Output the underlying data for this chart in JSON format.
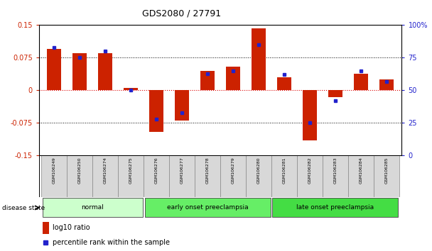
{
  "title": "GDS2080 / 27791",
  "samples": [
    "GSM106249",
    "GSM106250",
    "GSM106274",
    "GSM106275",
    "GSM106276",
    "GSM106277",
    "GSM106278",
    "GSM106279",
    "GSM106280",
    "GSM106281",
    "GSM106282",
    "GSM106283",
    "GSM106284",
    "GSM106285"
  ],
  "log10_ratio": [
    0.095,
    0.085,
    0.085,
    0.005,
    -0.095,
    -0.07,
    0.045,
    0.055,
    0.142,
    0.03,
    -0.115,
    -0.015,
    0.038,
    0.025
  ],
  "percentile_rank": [
    83,
    75,
    80,
    50,
    28,
    33,
    63,
    65,
    85,
    62,
    25,
    42,
    65,
    57
  ],
  "ylim_left": [
    -0.15,
    0.15
  ],
  "ylim_right": [
    0,
    100
  ],
  "yticks_left": [
    -0.15,
    -0.075,
    0,
    0.075,
    0.15
  ],
  "yticks_right": [
    0,
    25,
    50,
    75,
    100
  ],
  "ytick_labels_left": [
    "-0.15",
    "-0.075",
    "0",
    "0.075",
    "0.15"
  ],
  "ytick_labels_right": [
    "0",
    "25",
    "50",
    "75",
    "100%"
  ],
  "groups": [
    {
      "label": "normal",
      "start": 0,
      "end": 3,
      "color": "#ccffcc"
    },
    {
      "label": "early onset preeclampsia",
      "start": 4,
      "end": 8,
      "color": "#66ee66"
    },
    {
      "label": "late onset preeclampsia",
      "start": 9,
      "end": 13,
      "color": "#44dd44"
    }
  ],
  "bar_color": "#cc2200",
  "dot_color": "#2222cc",
  "background_color": "#ffffff",
  "legend_bar_label": "log10 ratio",
  "legend_dot_label": "percentile rank within the sample",
  "disease_state_label": "disease state",
  "xlim_left": -0.6,
  "xlim_right": 13.6
}
